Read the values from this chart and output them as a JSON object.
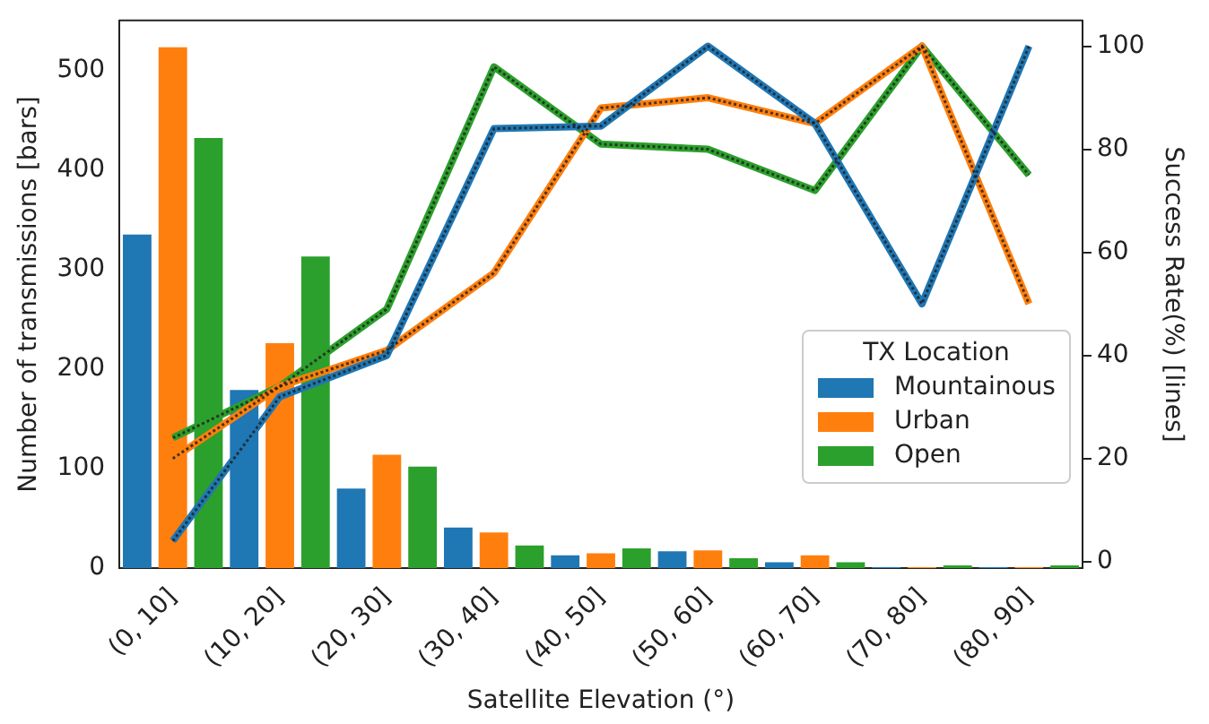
{
  "chart_data": {
    "type": "bar",
    "xlabel": "Satellite Elevation (°)",
    "ylabel": "Number of transmissions [bars]",
    "y2label": "Success Rate(%) [lines]",
    "legend_title": "TX Location",
    "legend": "right",
    "categories": [
      "(0, 10]",
      "(10, 20]",
      "(20, 30]",
      "(30, 40]",
      "(40, 50]",
      "(50, 60]",
      "(60, 70]",
      "(70, 80]",
      "(80, 90]"
    ],
    "ylim": [
      0,
      550
    ],
    "yticks": [
      0,
      100,
      200,
      300,
      400,
      500
    ],
    "y2lim": [
      -1.3,
      105
    ],
    "y2ticks": [
      0,
      20,
      40,
      60,
      80,
      100
    ],
    "grid": false,
    "line_style": "solid",
    "marker": "none",
    "series": [
      {
        "name": "Mountainous",
        "color": "#1f77b4",
        "values": [
          335,
          179,
          80,
          41,
          13,
          17,
          6,
          1,
          1
        ]
      },
      {
        "name": "Urban",
        "color": "#ff7f0e",
        "values": [
          523,
          226,
          114,
          36,
          15,
          18,
          13,
          1,
          1
        ]
      },
      {
        "name": "Open",
        "color": "#2ca02c",
        "values": [
          432,
          313,
          102,
          23,
          20,
          10,
          6,
          3,
          3
        ]
      },
      {
        "type": "line",
        "axis": "y2",
        "color": "#1f77b4",
        "values": [
          4,
          32,
          40,
          84,
          84.5,
          100,
          85,
          50,
          100
        ]
      },
      {
        "type": "line",
        "axis": "y2",
        "color": "#ff7f0e",
        "values": [
          20,
          34,
          41,
          56,
          88,
          90,
          85,
          100,
          50
        ]
      },
      {
        "type": "line",
        "axis": "y2",
        "color": "#2ca02c",
        "values": [
          24,
          34,
          49,
          96,
          81,
          80,
          72,
          100,
          75
        ]
      }
    ]
  }
}
